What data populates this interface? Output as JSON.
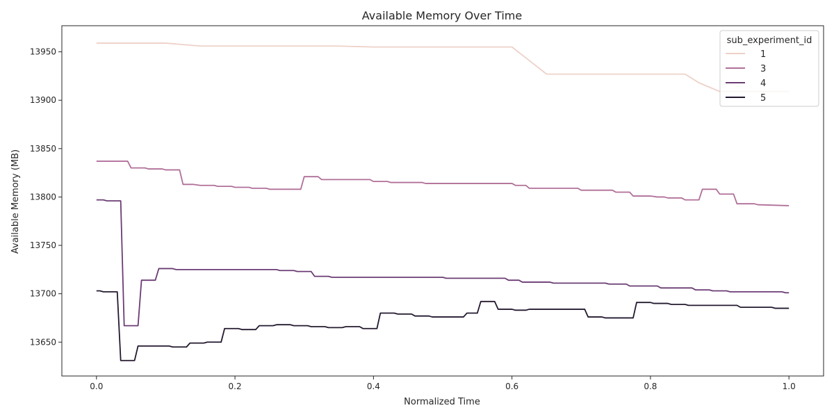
{
  "chart_data": {
    "type": "line",
    "title": "Available Memory Over Time",
    "xlabel": "Normalized Time",
    "ylabel": "Available Memory (MB)",
    "xlim": [
      -0.05,
      1.05
    ],
    "ylim": [
      13615,
      13977
    ],
    "x_ticks": [
      0.0,
      0.2,
      0.4,
      0.6,
      0.8,
      1.0
    ],
    "x_tick_labels": [
      "0.0",
      "0.2",
      "0.4",
      "0.6",
      "0.8",
      "1.0"
    ],
    "y_ticks": [
      13650,
      13700,
      13750,
      13800,
      13850,
      13900,
      13950
    ],
    "y_tick_labels": [
      "13650",
      "13700",
      "13750",
      "13800",
      "13850",
      "13900",
      "13950"
    ],
    "grid": false,
    "legend": {
      "title": "sub_experiment_id",
      "placement": "top-right"
    },
    "series": [
      {
        "name": "1",
        "color": "#eed1c8",
        "points": [
          [
            0.0,
            13959
          ],
          [
            0.1,
            13959
          ],
          [
            0.15,
            13956
          ],
          [
            0.35,
            13956
          ],
          [
            0.4,
            13955
          ],
          [
            0.6,
            13955
          ],
          [
            0.65,
            13927
          ],
          [
            0.85,
            13927
          ],
          [
            0.87,
            13918
          ],
          [
            0.9,
            13909
          ],
          [
            0.95,
            13909
          ],
          [
            1.0,
            13909
          ]
        ]
      },
      {
        "name": "3",
        "color": "#b06f98",
        "points": [
          [
            0.0,
            13837
          ],
          [
            0.045,
            13837
          ],
          [
            0.05,
            13830
          ],
          [
            0.07,
            13830
          ],
          [
            0.075,
            13829
          ],
          [
            0.095,
            13829
          ],
          [
            0.1,
            13828
          ],
          [
            0.12,
            13828
          ],
          [
            0.125,
            13813
          ],
          [
            0.14,
            13813
          ],
          [
            0.15,
            13812
          ],
          [
            0.17,
            13812
          ],
          [
            0.175,
            13811
          ],
          [
            0.195,
            13811
          ],
          [
            0.2,
            13810
          ],
          [
            0.22,
            13810
          ],
          [
            0.225,
            13809
          ],
          [
            0.245,
            13809
          ],
          [
            0.25,
            13808
          ],
          [
            0.295,
            13808
          ],
          [
            0.3,
            13821
          ],
          [
            0.32,
            13821
          ],
          [
            0.325,
            13818
          ],
          [
            0.395,
            13818
          ],
          [
            0.4,
            13816
          ],
          [
            0.42,
            13816
          ],
          [
            0.425,
            13815
          ],
          [
            0.47,
            13815
          ],
          [
            0.475,
            13814
          ],
          [
            0.6,
            13814
          ],
          [
            0.605,
            13812
          ],
          [
            0.62,
            13812
          ],
          [
            0.625,
            13809
          ],
          [
            0.695,
            13809
          ],
          [
            0.7,
            13807
          ],
          [
            0.745,
            13807
          ],
          [
            0.75,
            13805
          ],
          [
            0.77,
            13805
          ],
          [
            0.775,
            13801
          ],
          [
            0.8,
            13801
          ],
          [
            0.81,
            13800
          ],
          [
            0.82,
            13800
          ],
          [
            0.825,
            13799
          ],
          [
            0.845,
            13799
          ],
          [
            0.85,
            13797
          ],
          [
            0.87,
            13797
          ],
          [
            0.875,
            13808
          ],
          [
            0.895,
            13808
          ],
          [
            0.9,
            13803
          ],
          [
            0.92,
            13803
          ],
          [
            0.925,
            13793
          ],
          [
            0.95,
            13793
          ],
          [
            0.955,
            13792
          ],
          [
            1.0,
            13791
          ]
        ]
      },
      {
        "name": "4",
        "color": "#6a3c73",
        "points": [
          [
            0.0,
            13797
          ],
          [
            0.01,
            13797
          ],
          [
            0.015,
            13796
          ],
          [
            0.035,
            13796
          ],
          [
            0.04,
            13667
          ],
          [
            0.06,
            13667
          ],
          [
            0.065,
            13714
          ],
          [
            0.085,
            13714
          ],
          [
            0.09,
            13726
          ],
          [
            0.11,
            13726
          ],
          [
            0.115,
            13725
          ],
          [
            0.16,
            13725
          ],
          [
            0.165,
            13725
          ],
          [
            0.26,
            13725
          ],
          [
            0.265,
            13724
          ],
          [
            0.285,
            13724
          ],
          [
            0.29,
            13723
          ],
          [
            0.31,
            13723
          ],
          [
            0.315,
            13718
          ],
          [
            0.335,
            13718
          ],
          [
            0.34,
            13717
          ],
          [
            0.36,
            13717
          ],
          [
            0.365,
            13717
          ],
          [
            0.5,
            13717
          ],
          [
            0.505,
            13716
          ],
          [
            0.59,
            13716
          ],
          [
            0.595,
            13714
          ],
          [
            0.61,
            13714
          ],
          [
            0.615,
            13712
          ],
          [
            0.655,
            13712
          ],
          [
            0.66,
            13711
          ],
          [
            0.735,
            13711
          ],
          [
            0.74,
            13710
          ],
          [
            0.765,
            13710
          ],
          [
            0.77,
            13708
          ],
          [
            0.81,
            13708
          ],
          [
            0.815,
            13706
          ],
          [
            0.835,
            13706
          ],
          [
            0.84,
            13706
          ],
          [
            0.86,
            13706
          ],
          [
            0.865,
            13704
          ],
          [
            0.885,
            13704
          ],
          [
            0.89,
            13703
          ],
          [
            0.91,
            13703
          ],
          [
            0.915,
            13702
          ],
          [
            0.99,
            13702
          ],
          [
            0.995,
            13701
          ],
          [
            1.0,
            13701
          ]
        ]
      },
      {
        "name": "5",
        "color": "#23192f",
        "points": [
          [
            0.0,
            13703
          ],
          [
            0.005,
            13703
          ],
          [
            0.01,
            13702
          ],
          [
            0.03,
            13702
          ],
          [
            0.035,
            13631
          ],
          [
            0.055,
            13631
          ],
          [
            0.06,
            13646
          ],
          [
            0.08,
            13646
          ],
          [
            0.085,
            13646
          ],
          [
            0.105,
            13646
          ],
          [
            0.11,
            13645
          ],
          [
            0.13,
            13645
          ],
          [
            0.135,
            13649
          ],
          [
            0.155,
            13649
          ],
          [
            0.16,
            13650
          ],
          [
            0.18,
            13650
          ],
          [
            0.185,
            13664
          ],
          [
            0.205,
            13664
          ],
          [
            0.21,
            13663
          ],
          [
            0.23,
            13663
          ],
          [
            0.235,
            13667
          ],
          [
            0.255,
            13667
          ],
          [
            0.26,
            13668
          ],
          [
            0.28,
            13668
          ],
          [
            0.285,
            13667
          ],
          [
            0.305,
            13667
          ],
          [
            0.31,
            13666
          ],
          [
            0.33,
            13666
          ],
          [
            0.335,
            13665
          ],
          [
            0.355,
            13665
          ],
          [
            0.36,
            13666
          ],
          [
            0.38,
            13666
          ],
          [
            0.385,
            13664
          ],
          [
            0.405,
            13664
          ],
          [
            0.41,
            13680
          ],
          [
            0.43,
            13680
          ],
          [
            0.435,
            13679
          ],
          [
            0.455,
            13679
          ],
          [
            0.46,
            13677
          ],
          [
            0.48,
            13677
          ],
          [
            0.485,
            13676
          ],
          [
            0.53,
            13676
          ],
          [
            0.535,
            13680
          ],
          [
            0.55,
            13680
          ],
          [
            0.555,
            13692
          ],
          [
            0.575,
            13692
          ],
          [
            0.58,
            13684
          ],
          [
            0.6,
            13684
          ],
          [
            0.605,
            13683
          ],
          [
            0.62,
            13683
          ],
          [
            0.625,
            13684
          ],
          [
            0.705,
            13684
          ],
          [
            0.71,
            13676
          ],
          [
            0.73,
            13676
          ],
          [
            0.735,
            13675
          ],
          [
            0.755,
            13675
          ],
          [
            0.76,
            13675
          ],
          [
            0.775,
            13675
          ],
          [
            0.78,
            13691
          ],
          [
            0.8,
            13691
          ],
          [
            0.805,
            13690
          ],
          [
            0.825,
            13690
          ],
          [
            0.83,
            13689
          ],
          [
            0.85,
            13689
          ],
          [
            0.855,
            13688
          ],
          [
            0.91,
            13688
          ],
          [
            0.915,
            13688
          ],
          [
            0.925,
            13688
          ],
          [
            0.93,
            13686
          ],
          [
            0.95,
            13686
          ],
          [
            0.955,
            13686
          ],
          [
            0.975,
            13686
          ],
          [
            0.98,
            13685
          ],
          [
            1.0,
            13685
          ]
        ]
      }
    ]
  }
}
